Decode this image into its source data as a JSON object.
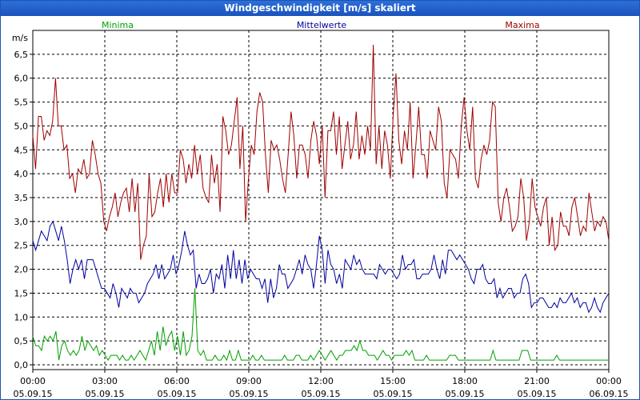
{
  "window": {
    "title": "Windgeschwindigkeit [m/s] skaliert"
  },
  "colors": {
    "minima": "#00a000",
    "mittel": "#0000a0",
    "maxima": "#a00000",
    "grid": "#000000",
    "titlebar": "#1e5fd0"
  },
  "chart_data": {
    "type": "line",
    "title": "Windgeschwindigkeit [m/s] skaliert",
    "ylabel": "m/s",
    "xlabel": "",
    "ylim": [
      -0.1,
      7.0
    ],
    "y_ticks": [
      "0,0",
      "0,5",
      "1,0",
      "1,5",
      "2,0",
      "2,5",
      "3,0",
      "3,5",
      "4,0",
      "4,5",
      "5,0",
      "5,5",
      "6,0",
      "6,5"
    ],
    "y_tick_values": [
      0,
      0.5,
      1.0,
      1.5,
      2.0,
      2.5,
      3.0,
      3.5,
      4.0,
      4.5,
      5.0,
      5.5,
      6.0,
      6.5
    ],
    "x_range_hours": [
      0,
      24
    ],
    "x_ticks": [
      {
        "time": "00:00",
        "date": "05.09.15",
        "h": 0
      },
      {
        "time": "03:00",
        "date": "05.09.15",
        "h": 3
      },
      {
        "time": "06:00",
        "date": "05.09.15",
        "h": 6
      },
      {
        "time": "09:00",
        "date": "05.09.15",
        "h": 9
      },
      {
        "time": "12:00",
        "date": "05.09.15",
        "h": 12
      },
      {
        "time": "15:00",
        "date": "05.09.15",
        "h": 15
      },
      {
        "time": "18:00",
        "date": "05.09.15",
        "h": 18
      },
      {
        "time": "21:00",
        "date": "05.09.15",
        "h": 21
      },
      {
        "time": "00:00",
        "date": "06.09.15",
        "h": 24
      }
    ],
    "grid": true,
    "series": [
      {
        "name": "Minima",
        "color": "#00a000",
        "values": [
          0.6,
          0.4,
          0.4,
          0.3,
          0.6,
          0.5,
          0.6,
          0.5,
          0.7,
          0.1,
          0.4,
          0.5,
          0.3,
          0.2,
          0.3,
          0.2,
          0.3,
          0.6,
          0.3,
          0.5,
          0.4,
          0.3,
          0.4,
          0.2,
          0.3,
          0.2,
          0.1,
          0.2,
          0.2,
          0.2,
          0.1,
          0.2,
          0.1,
          0.1,
          0.2,
          0.1,
          0.2,
          0.3,
          0.2,
          0.1,
          0.3,
          0.5,
          0.2,
          0.7,
          0.3,
          0.8,
          0.4,
          0.6,
          0.7,
          0.3,
          0.6,
          0.2,
          0.7,
          0.2,
          0.3,
          0.6,
          1.6,
          0.3,
          0.2,
          0.3,
          0.1,
          0.1,
          0.1,
          0.2,
          0.1,
          0.1,
          0.2,
          0.1,
          0.3,
          0.1,
          0.1,
          0.3,
          0.1,
          0.1,
          0.1,
          0.1,
          0.2,
          0.1,
          0.1,
          0.2,
          0.1,
          0.1,
          0.1,
          0.1,
          0.1,
          0.1,
          0.1,
          0.2,
          0.1,
          0.1,
          0.1,
          0.2,
          0.2,
          0.1,
          0.1,
          0.1,
          0.2,
          0.1,
          0.2,
          0.3,
          0.2,
          0.1,
          0.2,
          0.3,
          0.2,
          0.1,
          0.2,
          0.2,
          0.3,
          0.3,
          0.3,
          0.4,
          0.3,
          0.5,
          0.3,
          0.3,
          0.2,
          0.2,
          0.2,
          0.1,
          0.2,
          0.3,
          0.2,
          0.2,
          0.1,
          0.2,
          0.2,
          0.2,
          0.2,
          0.3,
          0.2,
          0.3,
          0.1,
          0.1,
          0.1,
          0.1,
          0.2,
          0.1,
          0.1,
          0.1,
          0.1,
          0.1,
          0.1,
          0.1,
          0.2,
          0.2,
          0.2,
          0.1,
          0.1,
          0.1,
          0.1,
          0.1,
          0.1,
          0.1,
          0.1,
          0.1,
          0.1,
          0.1,
          0.1,
          0.3,
          0.1,
          0.1,
          0.1,
          0.1,
          0.1,
          0.1,
          0.1,
          0.1,
          0.1,
          0.3,
          0.3,
          0.3,
          0.1,
          0.1,
          0.1,
          0.1,
          0.1,
          0.1,
          0.1,
          0.1,
          0.1,
          0.2,
          0.1,
          0.1,
          0.1,
          0.1,
          0.1,
          0.1,
          0.1,
          0.1,
          0.1,
          0.1,
          0.1,
          0.1,
          0.1,
          0.1,
          0.1,
          0.1,
          0.1,
          0.1
        ]
      },
      {
        "name": "Mittelwerte",
        "color": "#0000a0",
        "values": [
          2.6,
          2.4,
          2.6,
          2.8,
          2.7,
          2.6,
          2.9,
          3.0,
          2.8,
          2.6,
          2.9,
          2.6,
          2.2,
          1.7,
          2.0,
          2.2,
          2.0,
          2.2,
          1.8,
          2.2,
          2.2,
          2.2,
          2.0,
          1.8,
          1.6,
          1.6,
          1.5,
          1.4,
          1.7,
          1.5,
          1.2,
          1.6,
          1.5,
          1.4,
          1.6,
          1.5,
          1.5,
          1.3,
          1.4,
          1.5,
          1.7,
          1.8,
          1.9,
          2.1,
          1.8,
          2.1,
          1.8,
          1.9,
          2.0,
          2.3,
          1.9,
          2.1,
          2.4,
          2.8,
          2.5,
          2.3,
          2.4,
          1.6,
          1.9,
          1.7,
          1.7,
          1.8,
          2.0,
          1.5,
          1.9,
          1.8,
          2.1,
          1.6,
          2.3,
          1.8,
          2.4,
          1.8,
          2.2,
          1.7,
          2.2,
          1.8,
          2.0,
          1.9,
          1.8,
          1.8,
          1.6,
          1.8,
          1.3,
          1.8,
          1.4,
          1.6,
          2.1,
          1.9,
          1.9,
          1.6,
          1.7,
          1.8,
          2.0,
          2.2,
          1.9,
          2.3,
          2.1,
          2.0,
          1.6,
          2.1,
          2.7,
          2.4,
          1.7,
          2.4,
          2.1,
          2.0,
          1.7,
          1.9,
          1.6,
          2.2,
          2.1,
          2.0,
          2.3,
          2.1,
          2.2,
          2.0,
          1.9,
          1.9,
          1.9,
          1.9,
          1.8,
          2.1,
          2.0,
          1.9,
          2.0,
          2.0,
          1.9,
          1.8,
          1.9,
          2.3,
          2.0,
          2.1,
          2.1,
          2.2,
          1.8,
          1.8,
          1.9,
          1.9,
          1.9,
          2.0,
          2.3,
          2.0,
          1.8,
          2.2,
          1.9,
          2.4,
          2.4,
          2.3,
          2.2,
          2.3,
          2.2,
          2.1,
          2.0,
          1.8,
          1.7,
          2.0,
          2.0,
          2.1,
          1.8,
          1.7,
          1.7,
          1.8,
          1.4,
          1.6,
          1.4,
          1.5,
          1.6,
          1.6,
          1.4,
          1.5,
          1.5,
          1.8,
          1.9,
          1.7,
          1.2,
          1.3,
          1.3,
          1.4,
          1.4,
          1.3,
          1.2,
          1.2,
          1.3,
          1.2,
          1.4,
          1.3,
          1.3,
          1.4,
          1.5,
          1.3,
          1.4,
          1.2,
          1.3,
          1.3,
          1.1,
          1.2,
          1.4,
          1.2,
          1.1,
          1.3,
          1.4,
          1.5
        ]
      },
      {
        "name": "Maxima",
        "color": "#a00000",
        "values": [
          4.8,
          4.1,
          5.2,
          5.2,
          4.7,
          4.9,
          4.8,
          5.1,
          6.0,
          5.0,
          5.0,
          4.5,
          4.6,
          3.9,
          4.0,
          3.6,
          4.1,
          4.0,
          4.3,
          3.9,
          4.0,
          4.7,
          4.4,
          4.0,
          3.8,
          3.0,
          2.8,
          3.1,
          3.3,
          3.6,
          3.1,
          3.4,
          3.6,
          3.7,
          3.2,
          3.9,
          3.2,
          3.8,
          2.2,
          2.5,
          2.7,
          4.0,
          3.1,
          3.2,
          3.6,
          3.9,
          3.3,
          4.0,
          3.4,
          4.0,
          3.6,
          3.6,
          4.5,
          4.3,
          3.8,
          4.2,
          3.9,
          4.6,
          4.0,
          4.4,
          3.7,
          3.5,
          3.4,
          4.4,
          3.8,
          4.2,
          3.2,
          5.2,
          4.9,
          4.4,
          4.6,
          5.1,
          5.6,
          4.1,
          5.0,
          3.0,
          3.9,
          4.6,
          4.4,
          5.3,
          5.7,
          5.5,
          4.4,
          3.6,
          4.7,
          4.5,
          4.6,
          4.3,
          3.9,
          3.6,
          4.4,
          5.3,
          4.8,
          3.9,
          4.6,
          4.6,
          4.4,
          3.9,
          4.7,
          5.1,
          4.8,
          4.2,
          5.0,
          3.5,
          4.9,
          4.9,
          5.3,
          4.4,
          5.2,
          4.1,
          4.6,
          5.1,
          4.3,
          4.6,
          5.3,
          4.3,
          4.8,
          4.4,
          5.0,
          4.5,
          6.7,
          4.2,
          5.0,
          4.1,
          4.9,
          4.6,
          3.9,
          5.2,
          6.1,
          4.7,
          4.2,
          4.9,
          4.5,
          5.5,
          3.9,
          4.6,
          5.4,
          4.4,
          4.4,
          3.9,
          4.9,
          4.7,
          4.5,
          5.4,
          5.1,
          3.8,
          3.5,
          4.5,
          4.4,
          4.3,
          3.9,
          5.0,
          5.6,
          4.9,
          4.5,
          5.4,
          3.9,
          3.7,
          4.3,
          4.6,
          4.4,
          4.7,
          5.5,
          5.4,
          3.4,
          3.0,
          3.5,
          3.7,
          3.3,
          2.8,
          2.9,
          3.1,
          3.9,
          3.5,
          2.6,
          3.0,
          3.9,
          3.3,
          3.1,
          2.9,
          3.3,
          3.5,
          2.5,
          3.1,
          2.4,
          2.5,
          3.2,
          2.9,
          2.9,
          2.7,
          3.3,
          3.5,
          3.1,
          2.7,
          2.9,
          2.8,
          3.6,
          3.2,
          2.8,
          3.0,
          2.9,
          3.1,
          3.0,
          2.6
        ]
      }
    ]
  }
}
